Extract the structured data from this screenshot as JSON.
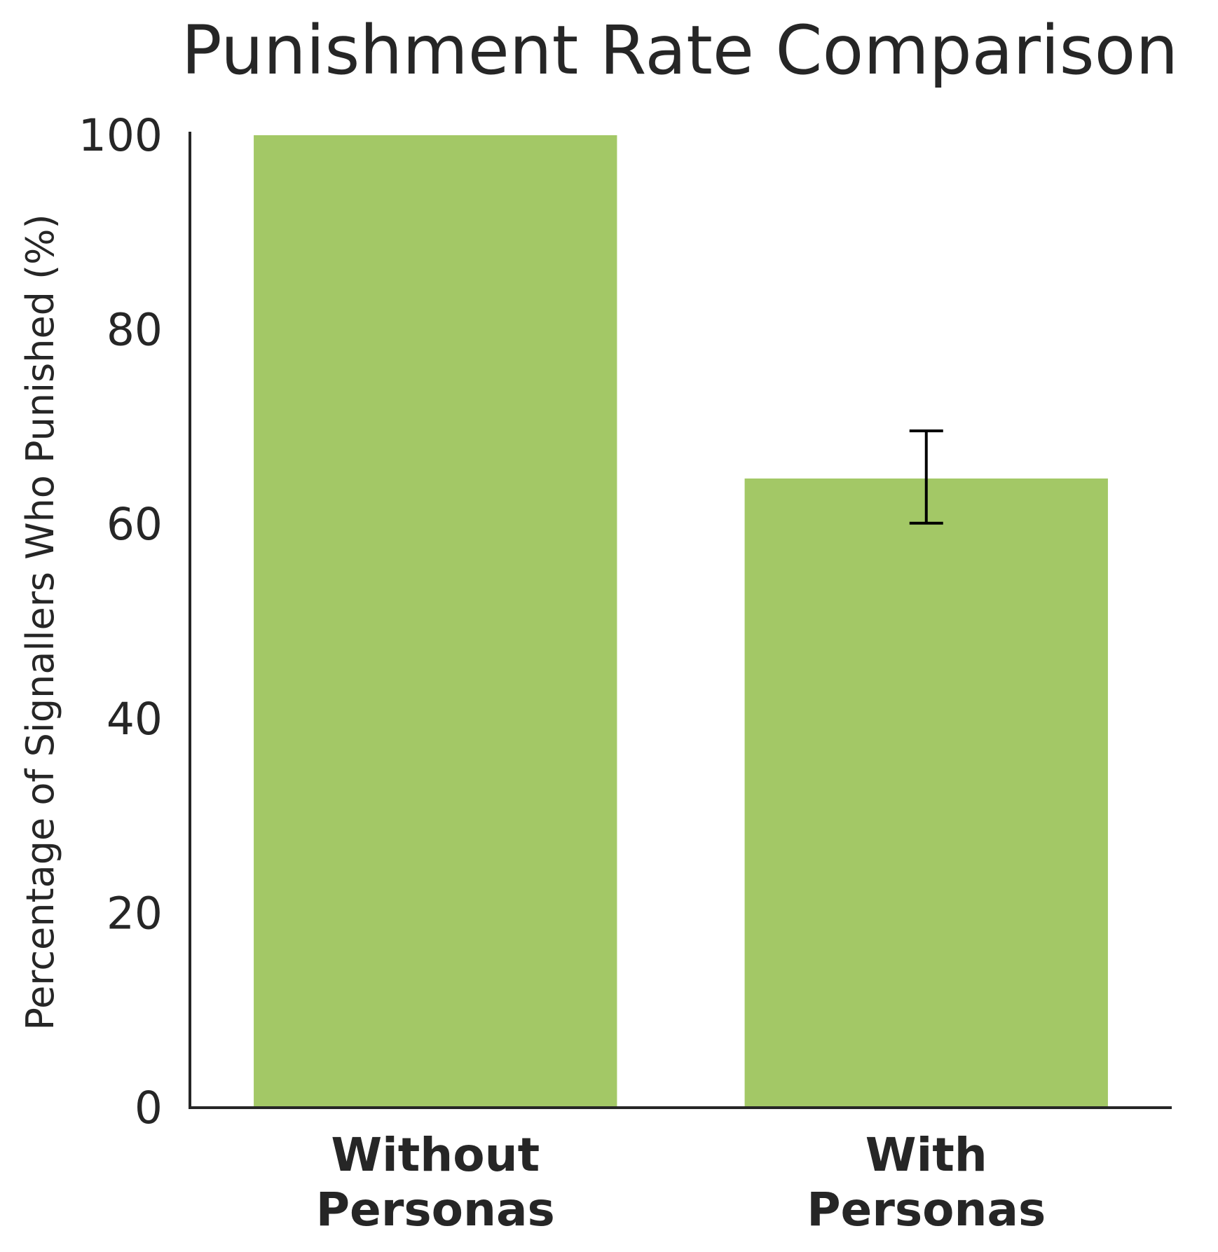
{
  "chart_data": {
    "type": "bar",
    "title": "Punishment Rate Comparison",
    "xlabel": "",
    "ylabel": "Percentage of Signallers Who Punished (%)",
    "categories": [
      [
        "Without",
        "Personas"
      ],
      [
        "With",
        "Personas"
      ]
    ],
    "values": [
      100,
      64.7
    ],
    "error": [
      null,
      [
        60.1,
        69.6
      ]
    ],
    "ylim": [
      0,
      100
    ],
    "yticks": [
      0,
      20,
      40,
      60,
      80,
      100
    ],
    "bar_color": "#a3c866",
    "error_color": "#000000",
    "grid": false,
    "legend": "none"
  }
}
